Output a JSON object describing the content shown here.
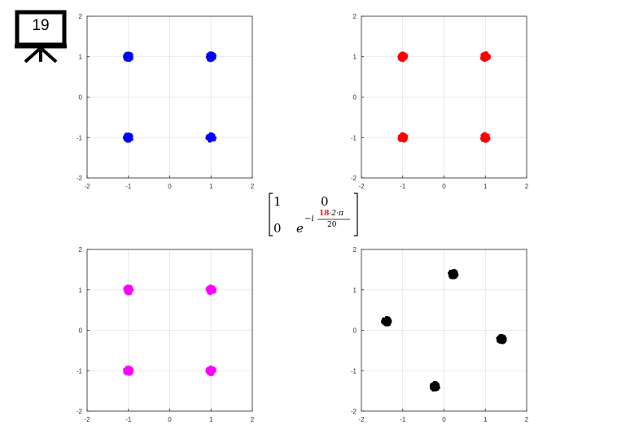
{
  "slide": {
    "number": "19"
  },
  "matrix": {
    "a11": "1",
    "a12": "0",
    "a21": "0",
    "base": "e",
    "exp_prefix": "−i",
    "exp_num_highlight": "18",
    "exp_num_rest": "·2·π",
    "exp_den": "20"
  },
  "colors": {
    "blue": "#0000ff",
    "red": "#ff0000",
    "magenta": "#ff00ff",
    "black": "#000000",
    "highlight": "#e02020"
  },
  "chart_data": [
    {
      "type": "scatter",
      "name": "top-left",
      "color": "#0000ff",
      "xlim": [
        -2,
        2
      ],
      "ylim": [
        -2,
        2
      ],
      "xticks": [
        "-2",
        "-1",
        "0",
        "1",
        "2"
      ],
      "yticks": [
        "2",
        "1",
        "0",
        "-1",
        "-2"
      ],
      "grid": true,
      "clusters": [
        {
          "x": -1,
          "y": 1
        },
        {
          "x": 1,
          "y": 1
        },
        {
          "x": -1,
          "y": -1
        },
        {
          "x": 1,
          "y": -1
        }
      ],
      "spread": 0.1
    },
    {
      "type": "scatter",
      "name": "top-right",
      "color": "#ff0000",
      "xlim": [
        -2,
        2
      ],
      "ylim": [
        -2,
        2
      ],
      "xticks": [
        "-2",
        "-1",
        "0",
        "1",
        "2"
      ],
      "yticks": [
        "2",
        "1",
        "0",
        "-1",
        "-2"
      ],
      "grid": true,
      "clusters": [
        {
          "x": -1,
          "y": 1
        },
        {
          "x": 1,
          "y": 1
        },
        {
          "x": -1,
          "y": -1
        },
        {
          "x": 1,
          "y": -1
        }
      ],
      "spread": 0.1
    },
    {
      "type": "scatter",
      "name": "bottom-left",
      "color": "#ff00ff",
      "xlim": [
        -2,
        2
      ],
      "ylim": [
        -2,
        2
      ],
      "xticks": [
        "-2",
        "-1",
        "0",
        "1",
        "2"
      ],
      "yticks": [
        "2",
        "1",
        "0",
        "-1",
        "-2"
      ],
      "grid": true,
      "clusters": [
        {
          "x": -1,
          "y": 1
        },
        {
          "x": 1,
          "y": 1
        },
        {
          "x": -1,
          "y": -1
        },
        {
          "x": 1,
          "y": -1
        }
      ],
      "spread": 0.1
    },
    {
      "type": "scatter",
      "name": "bottom-right",
      "color": "#000000",
      "xlim": [
        -2,
        2
      ],
      "ylim": [
        -2,
        2
      ],
      "xticks": [
        "-2",
        "-1",
        "0",
        "1",
        "2"
      ],
      "yticks": [
        "2",
        "1",
        "0",
        "-1",
        "-2"
      ],
      "grid": true,
      "clusters": [
        {
          "x": 0.22,
          "y": 1.39
        },
        {
          "x": -1.39,
          "y": 0.22
        },
        {
          "x": 1.39,
          "y": -0.22
        },
        {
          "x": -0.22,
          "y": -1.39
        }
      ],
      "spread": 0.1
    }
  ]
}
